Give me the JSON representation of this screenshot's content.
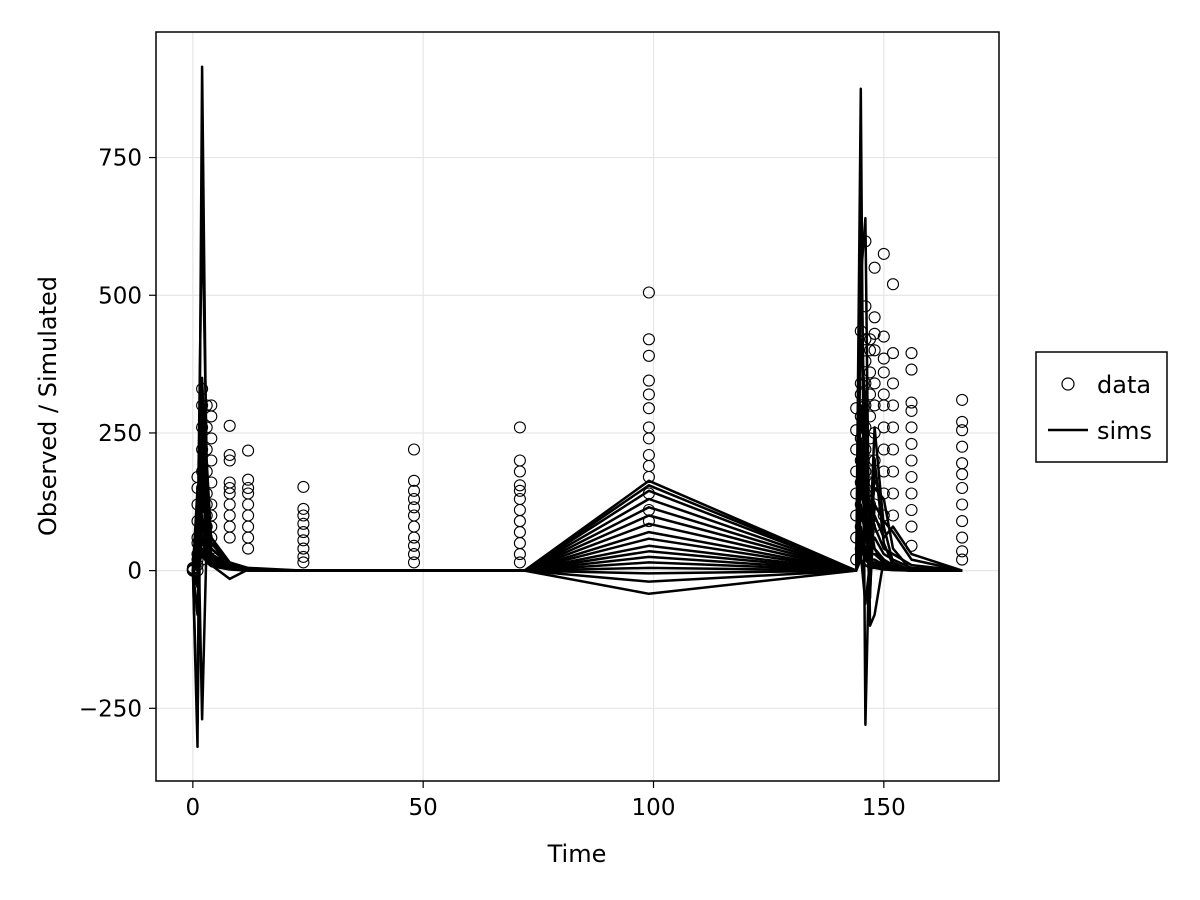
{
  "chart_data": {
    "type": "scatter",
    "xlabel": "Time",
    "ylabel": "Observed / Simulated",
    "xlim": [
      -8,
      175
    ],
    "ylim": [
      -382,
      978
    ],
    "xticks": [
      0,
      50,
      100,
      150
    ],
    "yticks": [
      -250,
      0,
      250,
      500,
      750
    ],
    "xtick_labels": [
      "0",
      "50",
      "100",
      "150"
    ],
    "ytick_labels": [
      "−250",
      "0",
      "250",
      "500",
      "750"
    ],
    "grid": true,
    "legend": {
      "placement": "right",
      "entries": [
        {
          "label": "data",
          "marker": "open-circle"
        },
        {
          "label": "sims",
          "marker": "line"
        }
      ]
    },
    "series": [
      {
        "name": "data",
        "kind": "points",
        "columns": [
          {
            "x": 0,
            "y": [
              0,
              2,
              5,
              0,
              1,
              3
            ]
          },
          {
            "x": 1,
            "y": [
              0,
              10,
              30,
              60,
              90,
              120,
              150,
              170,
              50,
              20
            ]
          },
          {
            "x": 2,
            "y": [
              20,
              50,
              80,
              120,
              150,
              180,
              220,
              260,
              300,
              330,
              100,
              60
            ]
          },
          {
            "x": 3,
            "y": [
              30,
              60,
              100,
              140,
              180,
              220,
              260,
              300,
              120,
              80
            ]
          },
          {
            "x": 4,
            "y": [
              40,
              80,
              120,
              160,
              200,
              240,
              280,
              300,
              100,
              60
            ]
          },
          {
            "x": 8,
            "y": [
              60,
              80,
              100,
              120,
              140,
              150,
              160,
              200,
              210,
              263
            ]
          },
          {
            "x": 12,
            "y": [
              40,
              60,
              80,
              100,
              120,
              140,
              150,
              165,
              218
            ]
          },
          {
            "x": 24,
            "y": [
              15,
              25,
              40,
              55,
              70,
              85,
              100,
              112,
              152
            ]
          },
          {
            "x": 48,
            "y": [
              15,
              30,
              45,
              60,
              80,
              100,
              115,
              130,
              145,
              163,
              220
            ]
          },
          {
            "x": 71,
            "y": [
              15,
              30,
              50,
              70,
              90,
              110,
              130,
              145,
              155,
              180,
              200,
              260
            ]
          },
          {
            "x": 99,
            "y": [
              90,
              110,
              140,
              170,
              190,
              210,
              240,
              260,
              295,
              320,
              345,
              390,
              420,
              505
            ]
          },
          {
            "x": 144,
            "y": [
              20,
              60,
              100,
              140,
              180,
              220,
              255,
              295
            ]
          },
          {
            "x": 145,
            "y": [
              40,
              80,
              120,
              160,
              200,
              240,
              280,
              320,
              340,
              435
            ]
          },
          {
            "x": 146,
            "y": [
              60,
              100,
              140,
              180,
              220,
              260,
              300,
              340,
              380,
              420,
              480,
              598
            ]
          },
          {
            "x": 147,
            "y": [
              80,
              120,
              160,
              200,
              240,
              280,
              320,
              360,
              400,
              420
            ]
          },
          {
            "x": 148,
            "y": [
              80,
              120,
              160,
              200,
              250,
              300,
              340,
              400,
              430,
              460,
              550
            ]
          },
          {
            "x": 150,
            "y": [
              100,
              140,
              180,
              220,
              260,
              300,
              320,
              360,
              385,
              425,
              575
            ]
          },
          {
            "x": 152,
            "y": [
              100,
              140,
              180,
              220,
              260,
              300,
              340,
              395,
              520
            ]
          },
          {
            "x": 156,
            "y": [
              45,
              80,
              110,
              140,
              170,
              200,
              230,
              260,
              290,
              305,
              365,
              395
            ]
          },
          {
            "x": 167,
            "y": [
              20,
              35,
              60,
              90,
              120,
              150,
              175,
              195,
              225,
              255,
              270,
              310
            ]
          }
        ]
      },
      {
        "name": "sims",
        "kind": "lines",
        "x": [
          0,
          1,
          2,
          3,
          4,
          8,
          12,
          24,
          48,
          72,
          99,
          144,
          145,
          146,
          147,
          148,
          150,
          152,
          156,
          167
        ],
        "lines": [
          [
            0,
            -320,
            915,
            130,
            20,
            5,
            0,
            0,
            0,
            0,
            163,
            0,
            875,
            -280,
            90,
            40,
            10,
            5,
            0,
            0
          ],
          [
            0,
            40,
            670,
            200,
            50,
            10,
            2,
            0,
            0,
            0,
            155,
            0,
            530,
            640,
            -100,
            -80,
            20,
            5,
            0,
            0
          ],
          [
            0,
            -280,
            350,
            150,
            40,
            10,
            2,
            0,
            0,
            0,
            145,
            0,
            640,
            120,
            -50,
            200,
            50,
            10,
            0,
            0
          ],
          [
            0,
            150,
            -270,
            60,
            30,
            8,
            2,
            0,
            0,
            0,
            130,
            0,
            420,
            300,
            60,
            260,
            80,
            15,
            0,
            0
          ],
          [
            0,
            100,
            300,
            80,
            20,
            5,
            1,
            0,
            0,
            0,
            115,
            0,
            300,
            200,
            100,
            150,
            130,
            40,
            0,
            0
          ],
          [
            0,
            60,
            200,
            120,
            60,
            15,
            3,
            0,
            0,
            0,
            100,
            0,
            200,
            150,
            80,
            100,
            60,
            80,
            30,
            0
          ],
          [
            0,
            -30,
            120,
            90,
            40,
            10,
            2,
            0,
            0,
            0,
            85,
            0,
            150,
            100,
            60,
            80,
            40,
            30,
            10,
            0
          ],
          [
            0,
            20,
            80,
            60,
            30,
            8,
            1,
            0,
            0,
            0,
            70,
            0,
            100,
            80,
            40,
            60,
            30,
            20,
            5,
            0
          ],
          [
            0,
            -80,
            250,
            100,
            50,
            15,
            5,
            0,
            0,
            0,
            58,
            0,
            240,
            130,
            -40,
            120,
            90,
            70,
            20,
            0
          ],
          [
            0,
            30,
            150,
            70,
            20,
            5,
            1,
            0,
            0,
            0,
            45,
            0,
            180,
            90,
            50,
            40,
            20,
            10,
            2,
            0
          ],
          [
            0,
            10,
            100,
            50,
            30,
            10,
            3,
            0,
            0,
            0,
            35,
            0,
            120,
            60,
            30,
            30,
            15,
            8,
            2,
            0
          ],
          [
            0,
            20,
            60,
            40,
            20,
            5,
            1,
            0,
            0,
            0,
            25,
            0,
            80,
            40,
            20,
            20,
            10,
            5,
            1,
            0
          ],
          [
            0,
            -20,
            180,
            60,
            25,
            6,
            1,
            0,
            0,
            0,
            15,
            0,
            60,
            30,
            15,
            15,
            8,
            4,
            1,
            0
          ],
          [
            0,
            10,
            40,
            20,
            10,
            3,
            1,
            0,
            0,
            0,
            5,
            0,
            40,
            20,
            10,
            10,
            5,
            2,
            0,
            0
          ],
          [
            0,
            5,
            30,
            15,
            8,
            2,
            0,
            0,
            0,
            0,
            -5,
            0,
            20,
            10,
            5,
            5,
            2,
            1,
            0,
            0
          ],
          [
            0,
            -10,
            60,
            25,
            10,
            -15,
            2,
            0,
            0,
            0,
            -20,
            0,
            30,
            -60,
            15,
            10,
            5,
            2,
            0,
            0
          ],
          [
            0,
            15,
            90,
            35,
            15,
            4,
            1,
            0,
            0,
            0,
            -42,
            0,
            50,
            25,
            12,
            8,
            4,
            2,
            0,
            0
          ]
        ]
      }
    ]
  }
}
